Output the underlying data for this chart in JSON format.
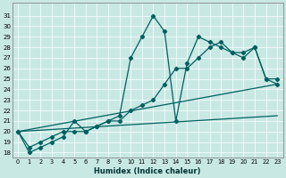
{
  "xlabel": "Humidex (Indice chaleur)",
  "bg_color": "#c8e8e4",
  "line_color": "#006060",
  "xlim": [
    -0.5,
    23.5
  ],
  "ylim": [
    17.5,
    32.2
  ],
  "xticks": [
    0,
    1,
    2,
    3,
    4,
    5,
    6,
    7,
    8,
    9,
    10,
    11,
    12,
    13,
    14,
    15,
    16,
    17,
    18,
    19,
    20,
    21,
    22,
    23
  ],
  "yticks": [
    18,
    19,
    20,
    21,
    22,
    23,
    24,
    25,
    26,
    27,
    28,
    29,
    30,
    31
  ],
  "line1_x": [
    0,
    1,
    2,
    3,
    4,
    5,
    6,
    7,
    8,
    9,
    10,
    11,
    12,
    13,
    14,
    15,
    16,
    17,
    18,
    19,
    20,
    21,
    22,
    23
  ],
  "line1_y": [
    20,
    18,
    18.5,
    19,
    19.5,
    21,
    20,
    20.5,
    21,
    21.5,
    27,
    29,
    31,
    29.5,
    21,
    26.5,
    29,
    28.5,
    28,
    27.5,
    27,
    28,
    25,
    24.5
  ],
  "line2_x": [
    0,
    1,
    2,
    3,
    4,
    5,
    6,
    7,
    8,
    9,
    10,
    11,
    12,
    13,
    14,
    15,
    16,
    17,
    18,
    19,
    20,
    21,
    22,
    23
  ],
  "line2_y": [
    20,
    18.5,
    19,
    19.5,
    20,
    20,
    20,
    20.5,
    21,
    21,
    22,
    22.5,
    23,
    24.5,
    26,
    26,
    27,
    28,
    28.5,
    27.5,
    27.5,
    28,
    25,
    25
  ],
  "line3_x": [
    0,
    23
  ],
  "line3_y": [
    20,
    24.5
  ],
  "line4_x": [
    0,
    23
  ],
  "line4_y": [
    20,
    21.5
  ]
}
